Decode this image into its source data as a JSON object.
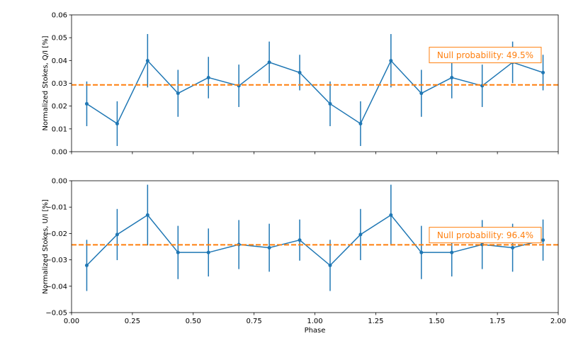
{
  "chart_data": [
    {
      "type": "line",
      "panel": "top",
      "xlabel": "",
      "ylabel": "Normalized Stokes, Q/I [%]",
      "xlim": [
        0,
        2
      ],
      "ylim": [
        0,
        0.06
      ],
      "xticks": [
        0.0,
        0.25,
        0.5,
        0.75,
        1.0,
        1.25,
        1.5,
        1.75,
        2.0
      ],
      "xtick_labels": [],
      "yticks": [
        0.0,
        0.01,
        0.02,
        0.03,
        0.04,
        0.05,
        0.06
      ],
      "ytick_labels": [
        "0.00",
        "0.01",
        "0.02",
        "0.03",
        "0.04",
        "0.05",
        "0.06"
      ],
      "series": [
        {
          "name": "Q/I",
          "color": "#1f77b4",
          "x": [
            0.0625,
            0.1875,
            0.3125,
            0.4375,
            0.5625,
            0.6875,
            0.8125,
            0.9375,
            1.0625,
            1.1875,
            1.3125,
            1.4375,
            1.5625,
            1.6875,
            1.8125,
            1.9375
          ],
          "values": [
            0.021,
            0.0123,
            0.0399,
            0.0256,
            0.0325,
            0.0289,
            0.0392,
            0.0347,
            0.021,
            0.0123,
            0.0399,
            0.0256,
            0.0325,
            0.0289,
            0.0392,
            0.0347
          ],
          "errors": [
            0.0098,
            0.0098,
            0.0117,
            0.0103,
            0.0091,
            0.0093,
            0.0091,
            0.0078,
            0.0098,
            0.0098,
            0.0117,
            0.0103,
            0.0091,
            0.0093,
            0.0091,
            0.0078
          ]
        }
      ],
      "hline": {
        "value": 0.0293,
        "color": "#ff7f0e",
        "style": "dashed"
      },
      "annotation": {
        "text": "Null probability: 49.5%",
        "x": 1.7,
        "y": 0.0424,
        "color": "#ff7f0e"
      }
    },
    {
      "type": "line",
      "panel": "bottom",
      "xlabel": "Phase",
      "ylabel": "Normalized Stokes, U/I [%]",
      "xlim": [
        0,
        2
      ],
      "ylim": [
        -0.05,
        0.0
      ],
      "xticks": [
        0.0,
        0.25,
        0.5,
        0.75,
        1.0,
        1.25,
        1.5,
        1.75,
        2.0
      ],
      "xtick_labels": [
        "0.00",
        "0.25",
        "0.50",
        "0.75",
        "1.00",
        "1.25",
        "1.50",
        "1.75",
        "2.00"
      ],
      "yticks": [
        -0.05,
        -0.04,
        -0.03,
        -0.02,
        -0.01,
        0.0
      ],
      "ytick_labels": [
        "−0.05",
        "−0.04",
        "−0.03",
        "−0.02",
        "−0.01",
        "0.00"
      ],
      "series": [
        {
          "name": "U/I",
          "color": "#1f77b4",
          "x": [
            0.0625,
            0.1875,
            0.3125,
            0.4375,
            0.5625,
            0.6875,
            0.8125,
            0.9375,
            1.0625,
            1.1875,
            1.3125,
            1.4375,
            1.5625,
            1.6875,
            1.8125,
            1.9375
          ],
          "values": [
            -0.0321,
            -0.0204,
            -0.013,
            -0.0272,
            -0.0272,
            -0.0242,
            -0.0254,
            -0.0225,
            -0.0321,
            -0.0204,
            -0.013,
            -0.0272,
            -0.0272,
            -0.0242,
            -0.0254,
            -0.0225
          ],
          "errors": [
            0.0097,
            0.0097,
            0.0115,
            0.0101,
            0.0091,
            0.0093,
            0.0091,
            0.0078,
            0.0097,
            0.0097,
            0.0115,
            0.0101,
            0.0091,
            0.0093,
            0.0091,
            0.0078
          ]
        }
      ],
      "hline": {
        "value": -0.0243,
        "color": "#ff7f0e",
        "style": "dashed"
      },
      "annotation": {
        "text": "Null probability: 96.4%",
        "x": 1.7,
        "y": -0.0206,
        "color": "#ff7f0e"
      }
    }
  ]
}
